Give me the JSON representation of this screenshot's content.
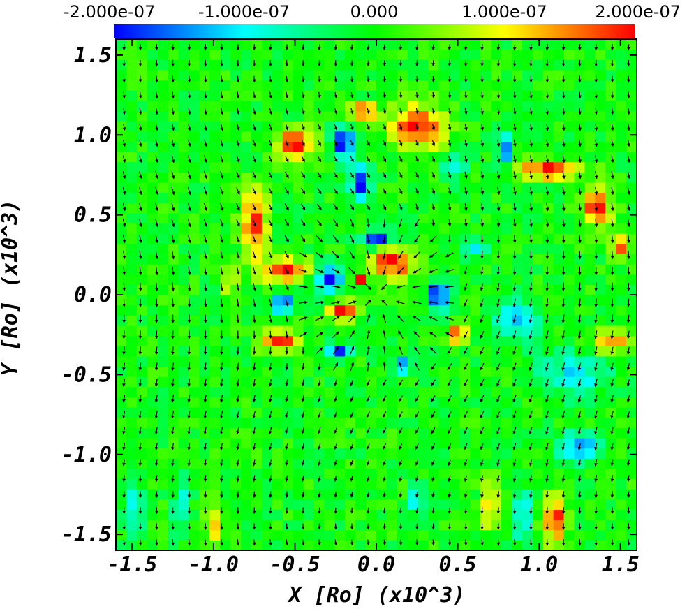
{
  "chart_data": {
    "type": "heatmap",
    "title": "",
    "xlabel": "X [Ro] (x10^3)",
    "ylabel": "Y [Ro] (x10^3)",
    "xlim": [
      -1.6,
      1.6
    ],
    "ylim": [
      -1.6,
      1.6
    ],
    "x_ticks": [
      "-1.5",
      "-1.0",
      "-0.5",
      "0.0",
      "0.5",
      "1.0",
      "1.5"
    ],
    "x_tick_values": [
      -1.5,
      -1.0,
      -0.5,
      0.0,
      0.5,
      1.0,
      1.5
    ],
    "y_ticks": [
      "1.5",
      "1.0",
      "0.5",
      "0.0",
      "-0.5",
      "-1.0",
      "-1.5"
    ],
    "y_tick_values": [
      1.5,
      1.0,
      0.5,
      0.0,
      -0.5,
      -1.0,
      -1.5
    ],
    "colorbar": {
      "colormap": "rainbow (blue-cyan-green-yellow-red)",
      "range": [
        -2e-07,
        2e-07
      ],
      "tick_labels": [
        "-2.000e-07",
        "-1.000e-07",
        "0.000",
        "1.000e-07",
        "2.000e-07"
      ],
      "tick_values": [
        -2e-07,
        -1e-07,
        0.0,
        1e-07,
        2e-07
      ],
      "colors": [
        "#0000ff",
        "#00ffff",
        "#00ff00",
        "#ffff00",
        "#ff0000"
      ]
    },
    "background_value": 0.0,
    "features": [
      {
        "value": 2e-07,
        "x": 0.25,
        "y": 1.05,
        "rx": 0.18,
        "ry": 0.15
      },
      {
        "value": 2e-07,
        "x": -0.08,
        "y": 1.15,
        "rx": 0.1,
        "ry": 0.05
      },
      {
        "value": -2e-07,
        "x": -0.2,
        "y": 0.95,
        "rx": 0.08,
        "ry": 0.1
      },
      {
        "value": -2e-07,
        "x": -0.1,
        "y": 0.7,
        "rx": 0.07,
        "ry": 0.12
      },
      {
        "value": -1.5e-07,
        "x": 0.78,
        "y": 0.9,
        "rx": 0.05,
        "ry": 0.15
      },
      {
        "value": -1e-07,
        "x": 0.48,
        "y": 0.8,
        "rx": 0.08,
        "ry": 0.1
      },
      {
        "value": 2e-07,
        "x": -0.5,
        "y": 0.95,
        "rx": 0.12,
        "ry": 0.1
      },
      {
        "value": 2e-07,
        "x": -0.75,
        "y": 0.45,
        "rx": 0.08,
        "ry": 0.22
      },
      {
        "value": 2e-07,
        "x": -0.55,
        "y": 0.15,
        "rx": 0.18,
        "ry": 0.08
      },
      {
        "value": 2e-07,
        "x": 1.05,
        "y": 0.78,
        "rx": 0.22,
        "ry": 0.06
      },
      {
        "value": 2e-07,
        "x": 1.35,
        "y": 0.55,
        "rx": 0.1,
        "ry": 0.12
      },
      {
        "value": 1.5e-07,
        "x": 1.5,
        "y": 0.3,
        "rx": 0.06,
        "ry": 0.08
      },
      {
        "value": -2e-07,
        "x": -0.3,
        "y": 0.1,
        "rx": 0.1,
        "ry": 0.1
      },
      {
        "value": 2e-07,
        "x": 0.1,
        "y": 0.2,
        "rx": 0.15,
        "ry": 0.1
      },
      {
        "value": -2e-07,
        "x": 0.0,
        "y": 0.35,
        "rx": 0.1,
        "ry": 0.05
      },
      {
        "value": 2e-07,
        "x": -0.1,
        "y": 0.1,
        "rx": 0.05,
        "ry": 0.04
      },
      {
        "value": -2e-07,
        "x": 0.38,
        "y": 0.0,
        "rx": 0.08,
        "ry": 0.1
      },
      {
        "value": -2e-07,
        "x": -0.58,
        "y": -0.05,
        "rx": 0.06,
        "ry": 0.08
      },
      {
        "value": 2e-07,
        "x": -0.6,
        "y": -0.28,
        "rx": 0.12,
        "ry": 0.08
      },
      {
        "value": 2e-07,
        "x": -0.2,
        "y": -0.1,
        "rx": 0.1,
        "ry": 0.06
      },
      {
        "value": -2e-07,
        "x": -0.22,
        "y": -0.35,
        "rx": 0.08,
        "ry": 0.05
      },
      {
        "value": -2e-07,
        "x": 0.15,
        "y": -0.45,
        "rx": 0.06,
        "ry": 0.05
      },
      {
        "value": 2e-07,
        "x": 0.5,
        "y": -0.25,
        "rx": 0.06,
        "ry": 0.06
      },
      {
        "value": -1.2e-07,
        "x": 0.85,
        "y": -0.15,
        "rx": 0.15,
        "ry": 0.15
      },
      {
        "value": -1e-07,
        "x": 1.2,
        "y": -0.5,
        "rx": 0.25,
        "ry": 0.15
      },
      {
        "value": 1.5e-07,
        "x": 1.45,
        "y": -0.3,
        "rx": 0.12,
        "ry": 0.08
      },
      {
        "value": -1.5e-07,
        "x": 1.25,
        "y": -0.95,
        "rx": 0.15,
        "ry": 0.1
      },
      {
        "value": -1.5e-07,
        "x": 0.9,
        "y": -1.4,
        "rx": 0.05,
        "ry": 0.18
      },
      {
        "value": 2e-07,
        "x": 1.1,
        "y": -1.4,
        "rx": 0.07,
        "ry": 0.18
      },
      {
        "value": 1.5e-07,
        "x": 0.7,
        "y": -1.3,
        "rx": 0.05,
        "ry": 0.18
      },
      {
        "value": -1e-07,
        "x": 0.25,
        "y": -1.3,
        "rx": 0.06,
        "ry": 0.1
      },
      {
        "value": -1e-07,
        "x": -1.5,
        "y": -1.35,
        "rx": 0.06,
        "ry": 0.18
      },
      {
        "value": -8e-08,
        "x": -1.2,
        "y": -1.3,
        "rx": 0.06,
        "ry": 0.2
      },
      {
        "value": 1e-07,
        "x": -1.0,
        "y": -1.45,
        "rx": 0.05,
        "ry": 0.15
      },
      {
        "value": 1e-07,
        "x": -0.9,
        "y": 0.1,
        "rx": 0.05,
        "ry": 0.15
      },
      {
        "value": -1e-07,
        "x": 0.6,
        "y": 0.3,
        "rx": 0.1,
        "ry": 0.08
      }
    ],
    "vector_field": {
      "description": "velocity arrows (black); dense radial flow near center",
      "grid_step": 0.1
    }
  }
}
